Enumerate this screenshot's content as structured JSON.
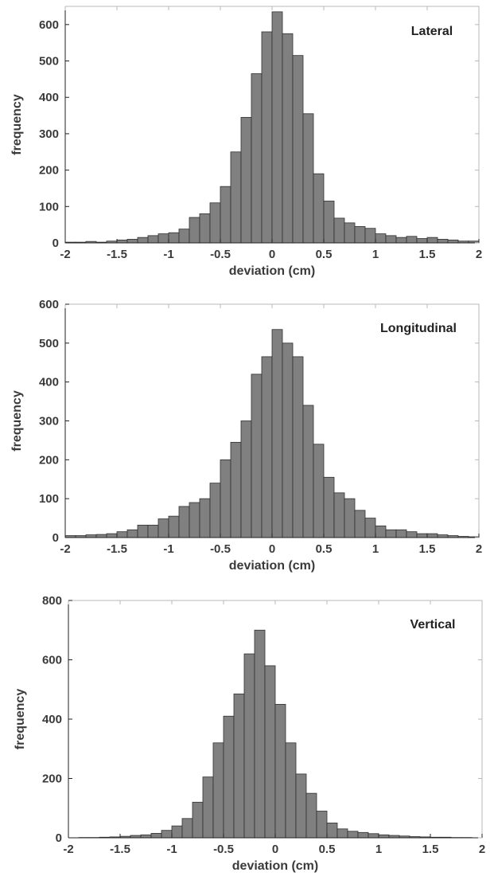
{
  "chart_data": [
    {
      "type": "bar",
      "title": "Lateral",
      "xlabel": "deviation (cm)",
      "ylabel": "frequency",
      "xlim": [
        -2,
        2
      ],
      "ylim": [
        0,
        650
      ],
      "xticks": [
        "-2",
        "-1.5",
        "-1",
        "-0.5",
        "0",
        "0.5",
        "1",
        "1.5",
        "2"
      ],
      "yticks": [
        "0",
        "100",
        "200",
        "300",
        "400",
        "500",
        "600"
      ],
      "bin_width": 0.1,
      "bin_start": -2.0,
      "values": [
        2,
        2,
        4,
        2,
        5,
        8,
        10,
        15,
        20,
        25,
        28,
        38,
        70,
        80,
        110,
        155,
        250,
        345,
        465,
        580,
        635,
        575,
        515,
        355,
        190,
        115,
        68,
        55,
        45,
        40,
        25,
        20,
        15,
        18,
        12,
        15,
        10,
        8,
        5,
        5
      ]
    },
    {
      "type": "bar",
      "title": "Longitudinal",
      "xlabel": "deviation (cm)",
      "ylabel": "frequency",
      "xlim": [
        -2,
        2
      ],
      "ylim": [
        0,
        600
      ],
      "xticks": [
        "-2",
        "-1.5",
        "-1",
        "-0.5",
        "0",
        "0.5",
        "1",
        "1.5",
        "2"
      ],
      "yticks": [
        "0",
        "100",
        "200",
        "300",
        "400",
        "500",
        "600"
      ],
      "bin_width": 0.1,
      "bin_start": -2.0,
      "values": [
        5,
        5,
        7,
        8,
        10,
        15,
        20,
        32,
        32,
        48,
        55,
        80,
        90,
        100,
        140,
        200,
        245,
        300,
        420,
        465,
        535,
        500,
        465,
        340,
        240,
        155,
        115,
        100,
        70,
        50,
        30,
        20,
        20,
        15,
        10,
        10,
        7,
        5,
        3,
        2
      ]
    },
    {
      "type": "bar",
      "title": "Vertical",
      "xlabel": "deviation (cm)",
      "ylabel": "frequency",
      "xlim": [
        -2,
        2
      ],
      "ylim": [
        0,
        800
      ],
      "xticks": [
        "-2",
        "-1.5",
        "-1",
        "-0.5",
        "0",
        "0.5",
        "1",
        "1.5",
        "2"
      ],
      "yticks": [
        "0",
        "200",
        "400",
        "600",
        "800"
      ],
      "bin_width": 0.1,
      "bin_start": -1.9,
      "values": [
        1,
        1,
        2,
        3,
        5,
        8,
        10,
        15,
        25,
        40,
        65,
        120,
        205,
        320,
        410,
        485,
        620,
        700,
        580,
        450,
        320,
        215,
        150,
        90,
        50,
        30,
        22,
        18,
        14,
        10,
        8,
        6,
        4,
        3,
        2,
        2,
        1,
        1
      ]
    }
  ]
}
